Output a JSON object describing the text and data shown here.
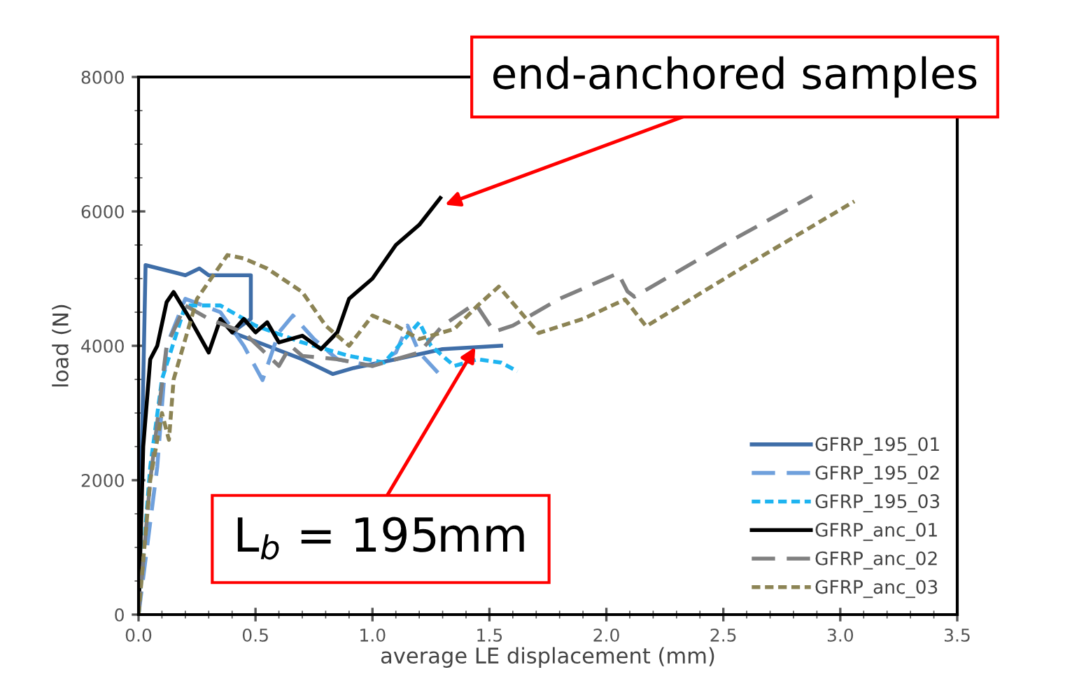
{
  "chart_data": {
    "type": "line",
    "xlabel": "average LE displacement (mm)",
    "ylabel": "load (N)",
    "xlim": [
      0,
      3.5
    ],
    "ylim": [
      0,
      8000
    ],
    "xticks": [
      {
        "value": 0,
        "label": "0.0"
      },
      {
        "value": 0.5,
        "label": "0.5"
      },
      {
        "value": 1,
        "label": "1.0"
      },
      {
        "value": 1.5,
        "label": "1.5"
      },
      {
        "value": 2,
        "label": "2.0"
      },
      {
        "value": 2.5,
        "label": "2.5"
      },
      {
        "value": 3,
        "label": "3.0"
      },
      {
        "value": 3.5,
        "label": "3.5"
      }
    ],
    "yticks": [
      0,
      2000,
      4000,
      6000,
      8000
    ],
    "grid": false,
    "legend": "bottom right",
    "series": [
      {
        "name": "GFRP_195_01",
        "color": "#3f6ea8",
        "line_style": "solid",
        "x": [
          0,
          0.03,
          0.2,
          0.26,
          0.3,
          0.48,
          0.48,
          0.4,
          0.55,
          0.7,
          0.83,
          0.92,
          1.1,
          1.3,
          1.55
        ],
        "values": [
          0,
          5200,
          5050,
          5150,
          5050,
          5050,
          4400,
          4200,
          4000,
          3800,
          3580,
          3670,
          3800,
          3950,
          4000
        ]
      },
      {
        "name": "GFRP_195_02",
        "color": "#6fa0dc",
        "line_style": "dashed",
        "x": [
          0,
          0.08,
          0.12,
          0.2,
          0.35,
          0.45,
          0.53,
          0.6,
          0.66,
          0.75,
          0.85,
          1.0,
          1.1,
          1.15,
          1.2,
          1.28
        ],
        "values": [
          0,
          2200,
          4000,
          4700,
          4500,
          4000,
          3490,
          4200,
          4450,
          4100,
          3800,
          3700,
          3900,
          4300,
          3900,
          3600
        ]
      },
      {
        "name": "GFRP_195_03",
        "color": "#1eb4f0",
        "line_style": "dotted",
        "x": [
          0,
          0.05,
          0.1,
          0.2,
          0.35,
          0.5,
          0.7,
          0.9,
          1.05,
          1.2,
          1.25,
          1.35,
          1.45,
          1.55,
          1.62
        ],
        "values": [
          0,
          2200,
          3500,
          4600,
          4600,
          4300,
          4050,
          3850,
          3750,
          4350,
          4000,
          3700,
          3800,
          3750,
          3620
        ]
      },
      {
        "name": "GFRP_anc_01",
        "color": "#000000",
        "line_style": "solid",
        "x": [
          0,
          0.02,
          0.05,
          0.08,
          0.12,
          0.15,
          0.22,
          0.3,
          0.35,
          0.4,
          0.45,
          0.5,
          0.55,
          0.6,
          0.7,
          0.78,
          0.85,
          0.9,
          1.0,
          1.1,
          1.2,
          1.29
        ],
        "values": [
          0,
          2500,
          3800,
          4000,
          4650,
          4800,
          4400,
          3900,
          4400,
          4200,
          4400,
          4200,
          4350,
          4050,
          4150,
          3950,
          4200,
          4700,
          5000,
          5500,
          5800,
          6200
        ]
      },
      {
        "name": "GFRP_anc_02",
        "color": "#808080",
        "line_style": "dashed",
        "x": [
          0,
          0.05,
          0.12,
          0.2,
          0.3,
          0.45,
          0.6,
          0.65,
          0.7,
          0.85,
          1.0,
          1.2,
          1.3,
          1.44,
          1.52,
          1.6,
          1.8,
          2.05,
          2.09,
          2.12,
          2.5,
          2.88
        ],
        "values": [
          0,
          2000,
          4000,
          4600,
          4400,
          4200,
          3700,
          4000,
          3850,
          3800,
          3700,
          3900,
          4300,
          4630,
          4210,
          4300,
          4700,
          5080,
          4810,
          4730,
          5500,
          6230
        ]
      },
      {
        "name": "GFRP_anc_03",
        "color": "#8c8455",
        "line_style": "dotted",
        "x": [
          0,
          0.05,
          0.1,
          0.13,
          0.15,
          0.25,
          0.38,
          0.45,
          0.55,
          0.7,
          0.8,
          0.9,
          1.0,
          1.1,
          1.2,
          1.35,
          1.45,
          1.54,
          1.71,
          1.9,
          2.08,
          2.17,
          2.6,
          3.06
        ],
        "values": [
          0,
          2000,
          3000,
          2600,
          3500,
          4700,
          5350,
          5300,
          5150,
          4800,
          4300,
          4000,
          4450,
          4300,
          4100,
          4250,
          4600,
          4880,
          4190,
          4400,
          4690,
          4290,
          5200,
          6150
        ]
      }
    ],
    "annotations": [
      {
        "text": "end-anchored samples",
        "x": 1.31,
        "y": 6100
      },
      {
        "text": "L$_{b}$ = 195mm",
        "x": 1.44,
        "y": 3980
      }
    ]
  }
}
